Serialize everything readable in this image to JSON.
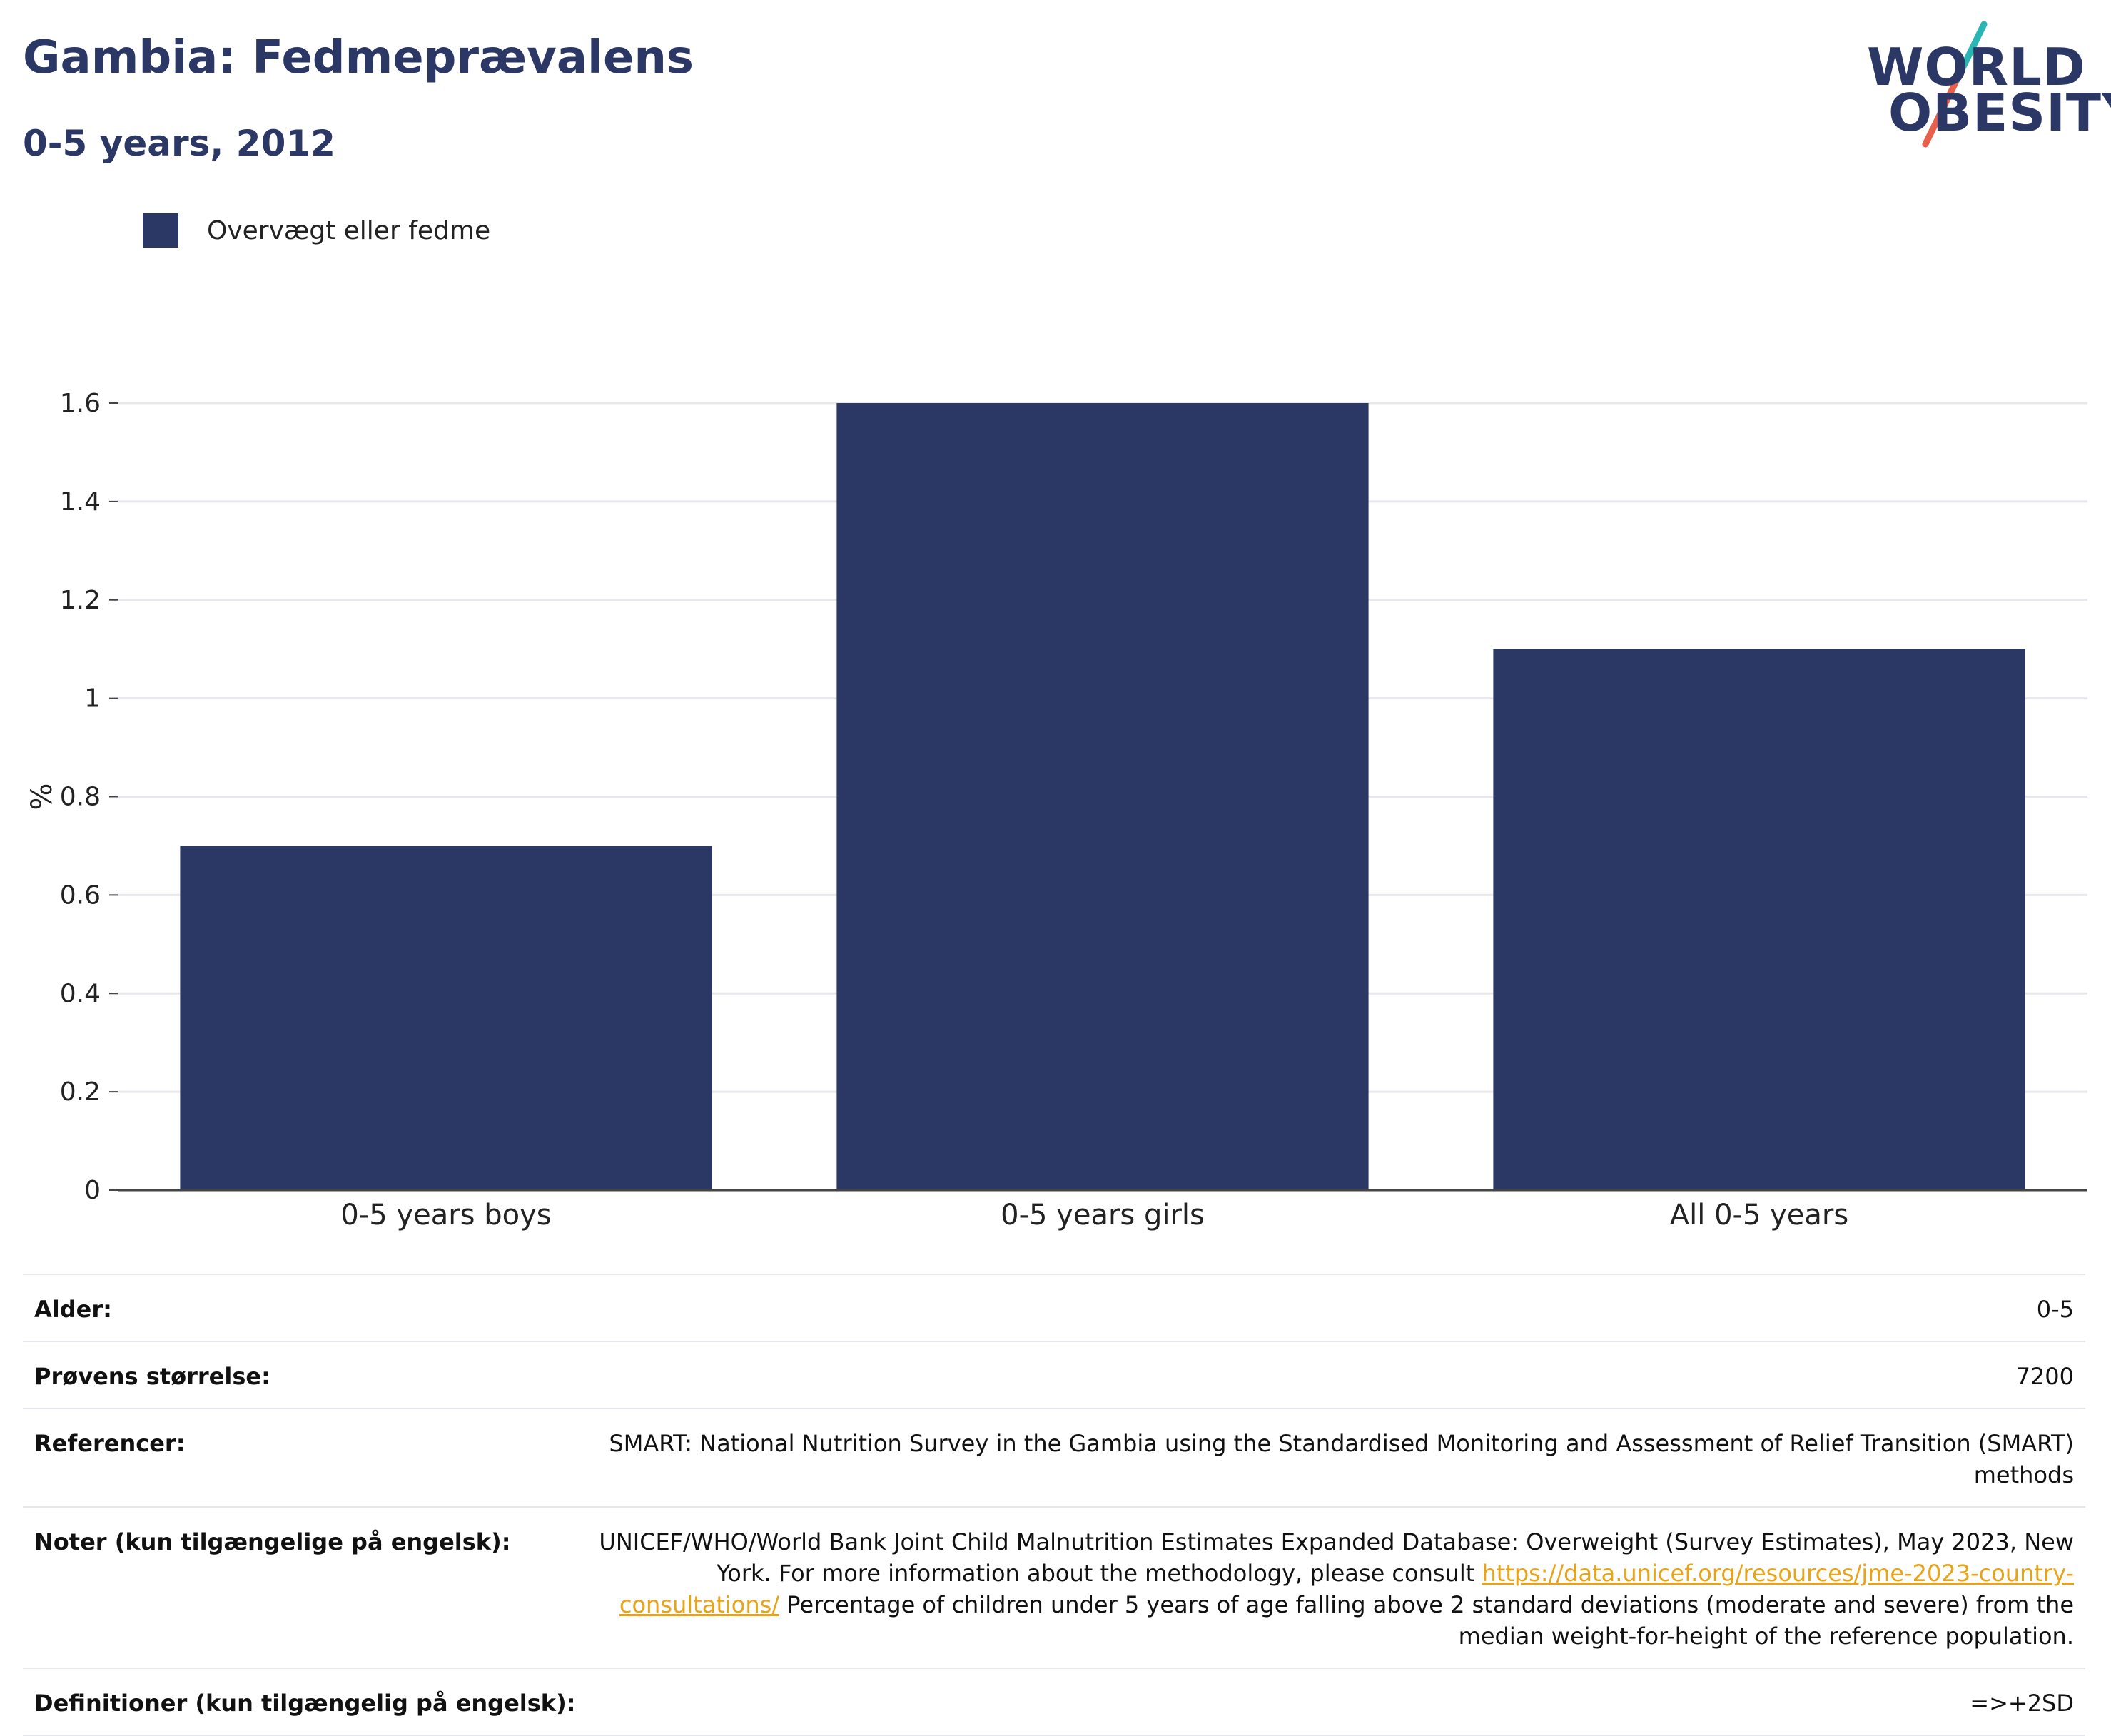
{
  "header": {
    "title": "Gambia: Fedmeprævalens",
    "subtitle": "0-5 years, 2012"
  },
  "logo": {
    "line1": "WORLD",
    "line2": "OBESITY",
    "colors": {
      "text": "#2b3764",
      "slash_top": "#2ab5b5",
      "slash_bottom": "#e8604c"
    }
  },
  "legend": {
    "label": "Overvægt eller fedme",
    "color": "#2b3764"
  },
  "chart_data": {
    "type": "bar",
    "categories": [
      "0-5 years boys",
      "0-5 years girls",
      "All 0-5 years"
    ],
    "series": [
      {
        "name": "Overvægt eller fedme",
        "values": [
          0.7,
          1.6,
          1.1
        ],
        "color": "#2b3764"
      }
    ],
    "ylabel": "%",
    "ylim": [
      0,
      1.6
    ],
    "yticks": [
      "0",
      "0.2",
      "0.4",
      "0.6",
      "0.8",
      "1",
      "1.2",
      "1.4",
      "1.6"
    ],
    "grid": true,
    "legend_position": "top-left"
  },
  "meta": {
    "age_label": "Alder:",
    "age_value": "0-5",
    "sample_label": "Prøvens størrelse:",
    "sample_value": "7200",
    "references_label": "Referencer:",
    "references_value": "SMART: National Nutrition Survey in the Gambia using the Standardised Monitoring and Assessment of Relief Transition (SMART) methods",
    "notes_label": "Noter (kun tilgængelige på engelsk):",
    "notes_text_1": "UNICEF/WHO/World Bank Joint Child Malnutrition Estimates Expanded Database: Overweight (Survey Estimates), May 2023, New York. For more information about the methodology, please consult ",
    "notes_link": "https://data.unicef.org/resources/jme-2023-country-consultations/",
    "notes_text_2": " Percentage of children under 5 years of age falling above 2 standard deviations (moderate and severe) from the median weight-for-height of the reference population.",
    "definitions_label": "Definitioner (kun tilgængelig på engelsk):",
    "definitions_value": "=>+2SD"
  }
}
